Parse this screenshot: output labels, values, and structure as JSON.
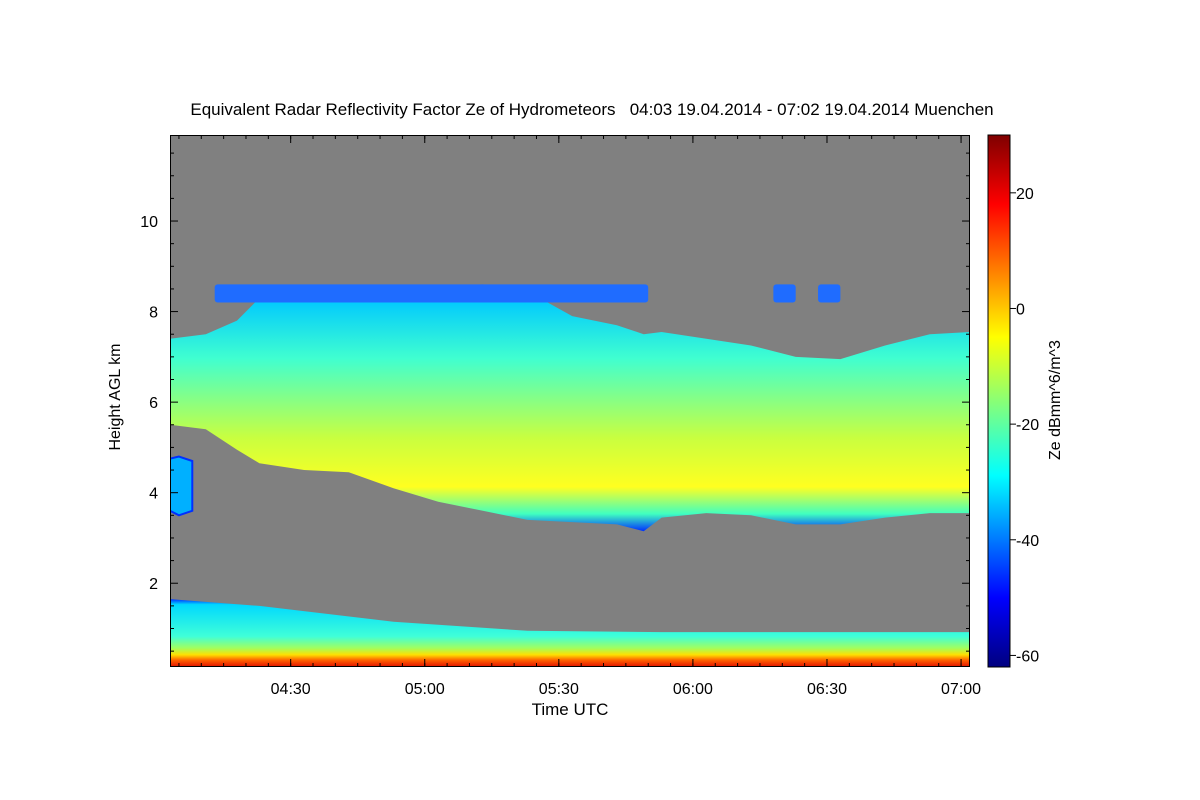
{
  "chart_data": {
    "type": "heatmap",
    "title": "Equivalent Radar Reflectivity Factor Ze of Hydrometeors   04:03 19.04.2014 - 07:02 19.04.2014 Muenchen",
    "xlabel": "Time UTC",
    "ylabel": "Height AGL km",
    "x_unit": "minutes after 04:03 UTC",
    "xlim": [
      0,
      179
    ],
    "ylim": [
      0.15,
      11.9
    ],
    "x_ticks": [
      {
        "value": 27,
        "label": "04:30"
      },
      {
        "value": 57,
        "label": "05:00"
      },
      {
        "value": 87,
        "label": "05:30"
      },
      {
        "value": 117,
        "label": "06:00"
      },
      {
        "value": 147,
        "label": "06:30"
      },
      {
        "value": 177,
        "label": "07:00"
      }
    ],
    "y_ticks": [
      {
        "value": 2,
        "label": "2"
      },
      {
        "value": 4,
        "label": "4"
      },
      {
        "value": 6,
        "label": "6"
      },
      {
        "value": 8,
        "label": "8"
      },
      {
        "value": 10,
        "label": "10"
      }
    ],
    "colorbar": {
      "label": "Ze dBmm^6/m^3",
      "range": [
        -62,
        30
      ],
      "ticks": [
        {
          "value": -60,
          "label": "-60"
        },
        {
          "value": -40,
          "label": "-40"
        },
        {
          "value": -20,
          "label": "-20"
        },
        {
          "value": 0,
          "label": "0"
        },
        {
          "value": 20,
          "label": "20"
        }
      ]
    },
    "no_echo_color": "#808080",
    "main_cloud": {
      "description": "mid-level cloud layer",
      "time_min": [
        0,
        8,
        15,
        20,
        30,
        40,
        50,
        60,
        70,
        80,
        90,
        100,
        106,
        110,
        120,
        130,
        140,
        150,
        160,
        170,
        179
      ],
      "base_km": [
        5.5,
        5.4,
        4.95,
        4.65,
        4.5,
        4.45,
        4.1,
        3.8,
        3.6,
        3.4,
        3.35,
        3.3,
        3.15,
        3.45,
        3.55,
        3.5,
        3.3,
        3.3,
        3.45,
        3.55,
        3.55
      ],
      "top_km": [
        7.4,
        7.5,
        7.8,
        8.3,
        8.4,
        8.45,
        8.5,
        8.55,
        8.6,
        8.45,
        7.9,
        7.7,
        7.5,
        7.55,
        7.4,
        7.25,
        7.0,
        6.95,
        7.25,
        7.5,
        7.55
      ],
      "core_ze_dbz": -12
    },
    "detached_cloud": {
      "description": "small cell near start",
      "time_min": [
        0,
        2,
        5
      ],
      "base_km": [
        3.6,
        3.5,
        3.6
      ],
      "top_km": [
        4.75,
        4.8,
        4.7
      ]
    },
    "upper_fragments": {
      "description": "thin layer near 8.4 km",
      "time_min": [
        10,
        135,
        140,
        145,
        150
      ],
      "base_km": 8.2,
      "top_km": 8.6
    },
    "boundary_layer": {
      "description": "low-level echo layer",
      "time_min": [
        0,
        20,
        50,
        80,
        110,
        140,
        179
      ],
      "top_km": [
        1.65,
        1.5,
        1.15,
        0.95,
        0.92,
        0.92,
        0.92
      ],
      "surface_ze_dbz": 18
    }
  }
}
